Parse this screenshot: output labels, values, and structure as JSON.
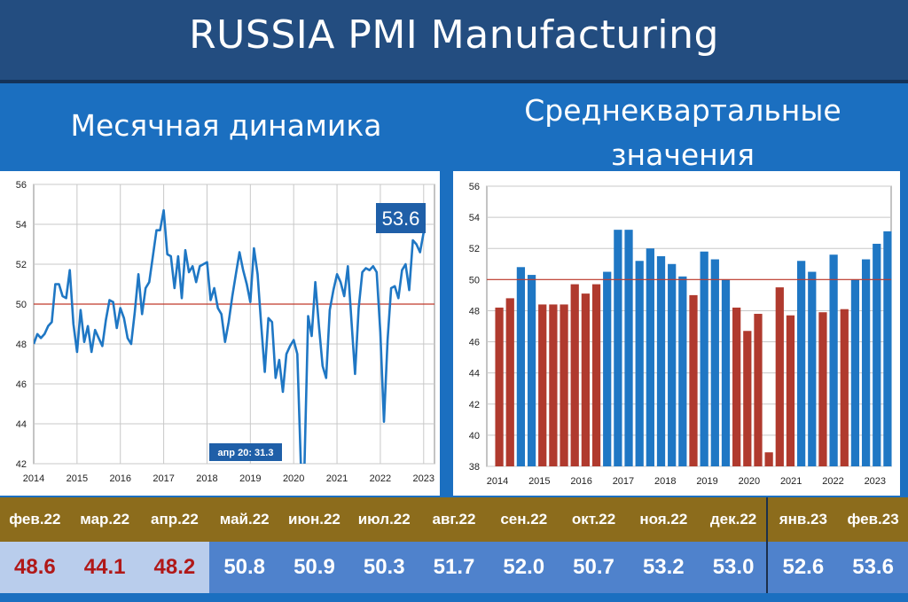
{
  "title": "RUSSIA PMI Manufacturing",
  "left": {
    "subtitle": "Месячная динамика",
    "callout": "53.6",
    "note": "апр 20: 31.3"
  },
  "right": {
    "subtitle_line1": "Среднеквартальные",
    "subtitle_line2": "значения"
  },
  "colors": {
    "blue": "#1f77c4",
    "red": "#b03a2e",
    "refline": "#c0392b",
    "header": "#8c6c1c"
  },
  "chart_data": [
    {
      "type": "line",
      "ylim": [
        42,
        56
      ],
      "yticks": [
        42,
        44,
        46,
        48,
        50,
        52,
        54,
        56
      ],
      "xticks": [
        "2014",
        "2015",
        "2016",
        "2017",
        "2018",
        "2019",
        "2020",
        "2021",
        "2022",
        "2023"
      ],
      "reference_line": 50,
      "series": [
        {
          "x_start_year": 2014,
          "values": [
            48.0,
            48.5,
            48.3,
            48.5,
            48.9,
            49.1,
            51.0,
            51.0,
            50.4,
            50.3,
            51.7,
            49.0,
            47.6,
            49.7,
            48.1,
            48.9,
            47.6,
            48.7,
            48.3,
            47.9,
            49.2,
            50.2,
            50.1,
            48.8,
            49.8,
            49.3,
            48.3,
            48.0,
            49.6,
            51.5,
            49.5,
            50.8,
            51.1,
            52.4,
            53.7,
            53.7,
            54.7,
            52.5,
            52.4,
            50.8,
            52.4,
            50.3,
            52.7,
            51.6,
            51.9,
            51.1,
            51.9,
            52.0,
            52.1,
            50.2,
            50.8,
            49.8,
            49.5,
            48.1,
            49.1,
            50.4,
            51.5,
            52.6,
            51.7,
            51.0,
            50.1,
            52.8,
            51.5,
            49.0,
            46.6,
            49.3,
            49.1,
            46.3,
            47.2,
            45.6,
            47.5,
            47.9,
            48.2,
            47.5,
            31.3,
            36.2,
            49.4,
            48.4,
            51.1,
            48.9,
            46.9,
            46.3,
            49.7,
            50.7,
            51.5,
            51.1,
            50.4,
            51.9,
            49.2,
            46.5,
            49.8,
            51.6,
            51.8,
            51.7,
            51.9,
            51.6,
            48.6,
            44.1,
            48.2,
            50.8,
            50.9,
            50.3,
            51.7,
            52.0,
            50.7,
            53.2,
            53.0,
            52.6,
            53.6
          ]
        }
      ]
    },
    {
      "type": "bar",
      "ylim": [
        38,
        56
      ],
      "yticks": [
        38,
        40,
        42,
        44,
        46,
        48,
        50,
        52,
        54,
        56
      ],
      "xticks": [
        "2014",
        "2015",
        "2016",
        "2017",
        "2018",
        "2019",
        "2020",
        "2021",
        "2022",
        "2023"
      ],
      "reference_line": 50,
      "values": [
        48.2,
        48.8,
        50.8,
        50.3,
        48.4,
        48.4,
        48.4,
        49.7,
        49.1,
        49.7,
        50.5,
        53.2,
        53.2,
        51.2,
        52.0,
        51.5,
        51.0,
        50.2,
        49.0,
        51.8,
        51.3,
        50.0,
        48.2,
        46.7,
        47.8,
        38.9,
        49.5,
        47.7,
        51.2,
        50.5,
        47.9,
        51.6,
        48.1,
        50.0,
        51.3,
        52.3,
        53.1
      ]
    }
  ],
  "table": {
    "headers": [
      "фев.22",
      "мар.22",
      "апр.22",
      "май.22",
      "июн.22",
      "июл.22",
      "авг.22",
      "сен.22",
      "окт.22",
      "ноя.22",
      "дек.22",
      "янв.23",
      "фев.23"
    ],
    "values": [
      "48.6",
      "44.1",
      "48.2",
      "50.8",
      "50.9",
      "50.3",
      "51.7",
      "52.0",
      "50.7",
      "53.2",
      "53.0",
      "52.6",
      "53.6"
    ]
  }
}
